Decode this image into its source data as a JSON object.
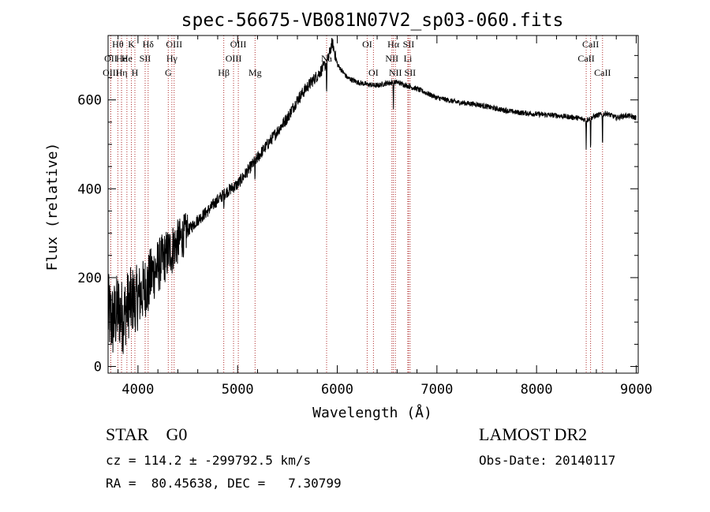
{
  "chart_data": {
    "type": "line",
    "title": "spec-56675-VB081N07V2_sp03-060.fits",
    "xlabel": "Wavelength (Å)",
    "ylabel": "Flux (relative)",
    "xlim": [
      3700,
      9020
    ],
    "ylim": [
      -15,
      745
    ],
    "xticks": [
      4000,
      5000,
      6000,
      7000,
      8000,
      9000
    ],
    "yticks": [
      0,
      200,
      400,
      600
    ],
    "grid": false,
    "spectrum_envelope": {
      "x": [
        3700,
        3750,
        3800,
        3850,
        3900,
        3950,
        4000,
        4050,
        4100,
        4150,
        4200,
        4300,
        4400,
        4500,
        4600,
        4700,
        4800,
        4900,
        5000,
        5100,
        5200,
        5300,
        5400,
        5500,
        5600,
        5700,
        5800,
        5900,
        5950,
        6000,
        6100,
        6200,
        6300,
        6400,
        6500,
        6600,
        6700,
        6800,
        6900,
        7000,
        7200,
        7400,
        7600,
        7800,
        8000,
        8200,
        8400,
        8500,
        8600,
        8700,
        8800,
        8900,
        9000
      ],
      "y": [
        120,
        100,
        130,
        110,
        140,
        150,
        155,
        170,
        190,
        210,
        225,
        255,
        280,
        305,
        330,
        350,
        375,
        395,
        410,
        440,
        470,
        500,
        530,
        560,
        600,
        630,
        655,
        685,
        730,
        680,
        650,
        640,
        635,
        632,
        638,
        640,
        632,
        625,
        615,
        605,
        595,
        590,
        580,
        572,
        568,
        565,
        560,
        555,
        565,
        570,
        560,
        565,
        560
      ]
    },
    "line_markers": [
      {
        "label": "Hθ",
        "x": 3798,
        "row": 1
      },
      {
        "label": "OII",
        "x": 3727,
        "row": 2
      },
      {
        "label": "OIII",
        "x": 3727,
        "row": 3
      },
      {
        "label": "He",
        "x": 3835,
        "row": 2
      },
      {
        "label": "Hη",
        "x": 3835,
        "row": 3
      },
      {
        "label": "K",
        "x": 3934,
        "row": 1
      },
      {
        "label": "He",
        "x": 3889,
        "row": 2
      },
      {
        "label": "H",
        "x": 3969,
        "row": 3
      },
      {
        "label": "Hδ",
        "x": 4102,
        "row": 1
      },
      {
        "label": "SII",
        "x": 4072,
        "row": 2
      },
      {
        "label": "OIII",
        "x": 4363,
        "row": 1
      },
      {
        "label": "Hγ",
        "x": 4340,
        "row": 2
      },
      {
        "label": "G",
        "x": 4304,
        "row": 3
      },
      {
        "label": "Hβ",
        "x": 4861,
        "row": 3
      },
      {
        "label": "OIII",
        "x": 5007,
        "row": 1
      },
      {
        "label": "OIII",
        "x": 4959,
        "row": 2
      },
      {
        "label": "Mg",
        "x": 5175,
        "row": 3
      },
      {
        "label": "Na",
        "x": 5893,
        "row": 2
      },
      {
        "label": "OI",
        "x": 6300,
        "row": 1
      },
      {
        "label": "OI",
        "x": 6363,
        "row": 3
      },
      {
        "label": "Hα",
        "x": 6563,
        "row": 1
      },
      {
        "label": "NII",
        "x": 6548,
        "row": 2
      },
      {
        "label": "NII",
        "x": 6583,
        "row": 3
      },
      {
        "label": "SII",
        "x": 6716,
        "row": 1
      },
      {
        "label": "Li",
        "x": 6708,
        "row": 2
      },
      {
        "label": "SII",
        "x": 6731,
        "row": 3
      },
      {
        "label": "CaII",
        "x": 8542,
        "row": 1
      },
      {
        "label": "CaII",
        "x": 8498,
        "row": 2
      },
      {
        "label": "CaII",
        "x": 8662,
        "row": 3
      }
    ],
    "colors": {
      "spectrum": "#000000",
      "marker": "#b03030",
      "axes": "#000000"
    }
  },
  "info": {
    "class_line": "STAR    G0",
    "survey": "LAMOST DR2",
    "cz_line": "cz = 114.2 ± -299792.5 km/s",
    "obs_date": "Obs-Date: 20140117",
    "radec_line": "RA =  80.45638, DEC =   7.30799"
  }
}
